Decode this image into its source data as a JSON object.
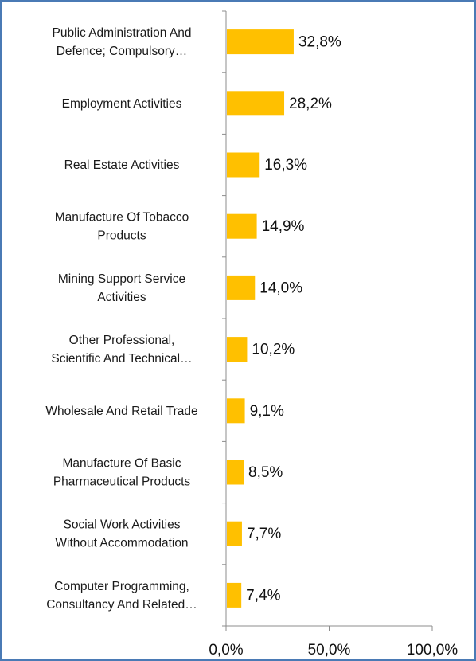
{
  "chart_data": {
    "type": "bar",
    "orientation": "horizontal",
    "title": "",
    "xlabel": "",
    "ylabel": "",
    "xlim": [
      0,
      100
    ],
    "grid": false,
    "legend": "none",
    "bar_color": "#ffc000",
    "categories": [
      [
        "Public Administration And",
        "Defence; Compulsory…"
      ],
      [
        "Employment Activities"
      ],
      [
        "Real Estate Activities"
      ],
      [
        "Manufacture Of Tobacco",
        "Products"
      ],
      [
        "Mining Support Service",
        "Activities"
      ],
      [
        "Other Professional,",
        "Scientific And Technical…"
      ],
      [
        "Wholesale And Retail Trade"
      ],
      [
        "Manufacture Of Basic",
        "Pharmaceutical Products"
      ],
      [
        "Social Work Activities",
        "Without Accommodation"
      ],
      [
        "Computer Programming,",
        "Consultancy And Related…"
      ]
    ],
    "values": [
      32.8,
      28.2,
      16.3,
      14.9,
      14.0,
      10.2,
      9.1,
      8.5,
      7.7,
      7.4
    ],
    "value_labels": [
      "32,8%",
      "28,2%",
      "16,3%",
      "14,9%",
      "14,0%",
      "10,2%",
      "9,1%",
      "8,5%",
      "7,7%",
      "7,4%"
    ],
    "ticks": [
      0,
      50,
      100
    ],
    "tick_labels": [
      "0,0%",
      "50,0%",
      "100,0%"
    ]
  },
  "colors": {
    "frame_border": "#4a7ab5",
    "axis": "#8c8c8c"
  }
}
